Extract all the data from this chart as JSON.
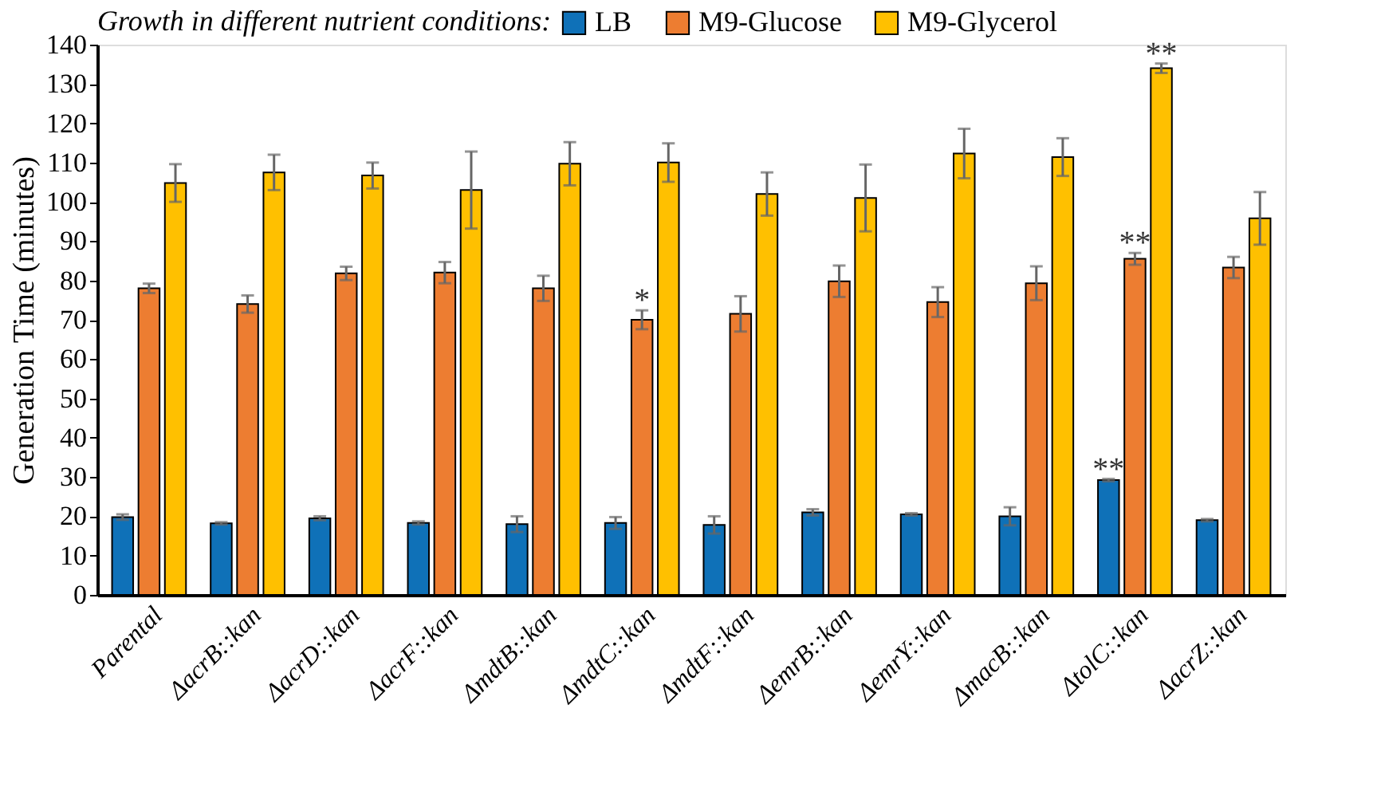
{
  "chart_data": {
    "type": "bar",
    "ylabel": "Generation Time (minutes)",
    "legend_title": "Growth in different nutrient conditions:",
    "categories": [
      "Parental",
      "ΔacrB::kan",
      "ΔacrD::kan",
      "ΔacrF::kan",
      "ΔmdtB::kan",
      "ΔmdtC::kan",
      "ΔmdtF::kan",
      "ΔemrB::kan",
      "ΔemrY::kan",
      "ΔmacB::kan",
      "ΔtolC::kan",
      "ΔacrZ::kan"
    ],
    "series": [
      {
        "name": "LB",
        "color": "#0f71b8",
        "values": [
          19.8,
          18.2,
          19.5,
          18.3,
          18,
          18.3,
          17.8,
          21,
          20.5,
          20,
          29.2,
          19
        ],
        "errors": [
          0.7,
          0.3,
          0.5,
          0.4,
          2,
          1.5,
          2.2,
          0.8,
          0.3,
          2.3,
          0.3,
          0.3
        ]
      },
      {
        "name": "M9-Glucose",
        "color": "#ed7d31",
        "values": [
          78,
          74,
          81.8,
          82,
          78,
          70,
          71.5,
          79.8,
          74.5,
          79.3,
          85.5,
          83.3
        ],
        "errors": [
          1.2,
          2.2,
          1.7,
          2.7,
          3.2,
          2.4,
          4.5,
          4,
          3.8,
          4.3,
          1.5,
          2.7
        ]
      },
      {
        "name": "M9-Glycerol",
        "color": "#ffc000",
        "values": [
          104.8,
          107.5,
          106.7,
          103,
          109.7,
          110,
          102,
          101,
          112.3,
          111.4,
          134,
          95.8
        ],
        "errors": [
          4.8,
          4.5,
          3.3,
          9.8,
          5.5,
          4.9,
          5.5,
          8.5,
          6.3,
          4.8,
          1.2,
          6.7
        ]
      }
    ],
    "annotations": [
      {
        "text": "*",
        "x": "ΔmdtC::kan",
        "y": 72.4
      },
      {
        "text": "**",
        "x": "ΔtolC::kan",
        "y": 29.5
      },
      {
        "text": "**",
        "x": "ΔtolC::kan",
        "y": 87
      },
      {
        "text": "**",
        "x": "ΔtolC::kan",
        "y": 135.2
      }
    ],
    "ylim": [
      0,
      140
    ],
    "yticks": [
      0,
      10,
      20,
      30,
      40,
      50,
      60,
      70,
      80,
      90,
      100,
      110,
      120,
      130,
      140
    ],
    "grid": false,
    "legend": "top"
  }
}
